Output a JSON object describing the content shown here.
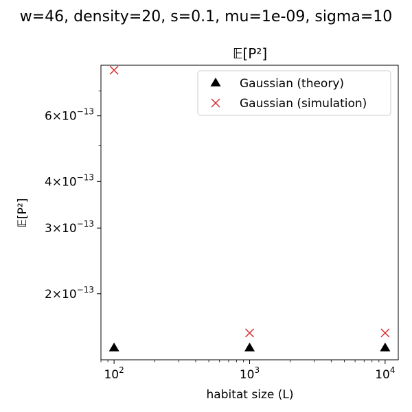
{
  "figure": {
    "suptitle": "w=46, density=20, s=0.1, mu=1e-09, sigma=10"
  },
  "chart_data": {
    "type": "scatter",
    "title": "𝔼[P²]",
    "xlabel": "habitat size (L)",
    "ylabel": "𝔼[P²]",
    "xscale": "log",
    "yscale": "log",
    "xlim": [
      80,
      12500
    ],
    "ylim": [
      1.33e-13,
      8.2e-13
    ],
    "x_ticks": [
      {
        "value": 100,
        "base": "10",
        "exp": "2"
      },
      {
        "value": 1000,
        "base": "10",
        "exp": "3"
      },
      {
        "value": 10000,
        "base": "10",
        "exp": "4"
      }
    ],
    "y_ticks": [
      {
        "value": 2e-13,
        "mant": "2",
        "base": "10",
        "exp": "−13"
      },
      {
        "value": 3e-13,
        "mant": "3",
        "base": "10",
        "exp": "−13"
      },
      {
        "value": 4e-13,
        "mant": "4",
        "base": "10",
        "exp": "−13"
      },
      {
        "value": 6e-13,
        "mant": "6",
        "base": "10",
        "exp": "−13"
      }
    ],
    "y_minor_ticks": [
      5e-13,
      7e-13
    ],
    "grid": false,
    "legend_position": "top-right",
    "series": [
      {
        "name": "Gaussian (theory)",
        "marker": "triangle",
        "color": "#000000",
        "x": [
          100,
          1000,
          10000
        ],
        "y": [
          1.43e-13,
          1.43e-13,
          1.43e-13
        ]
      },
      {
        "name": "Gaussian (simulation)",
        "marker": "x",
        "color": "#d62728",
        "x": [
          100,
          1000,
          10000
        ],
        "y": [
          7.95e-13,
          1.57e-13,
          1.57e-13
        ]
      }
    ]
  }
}
